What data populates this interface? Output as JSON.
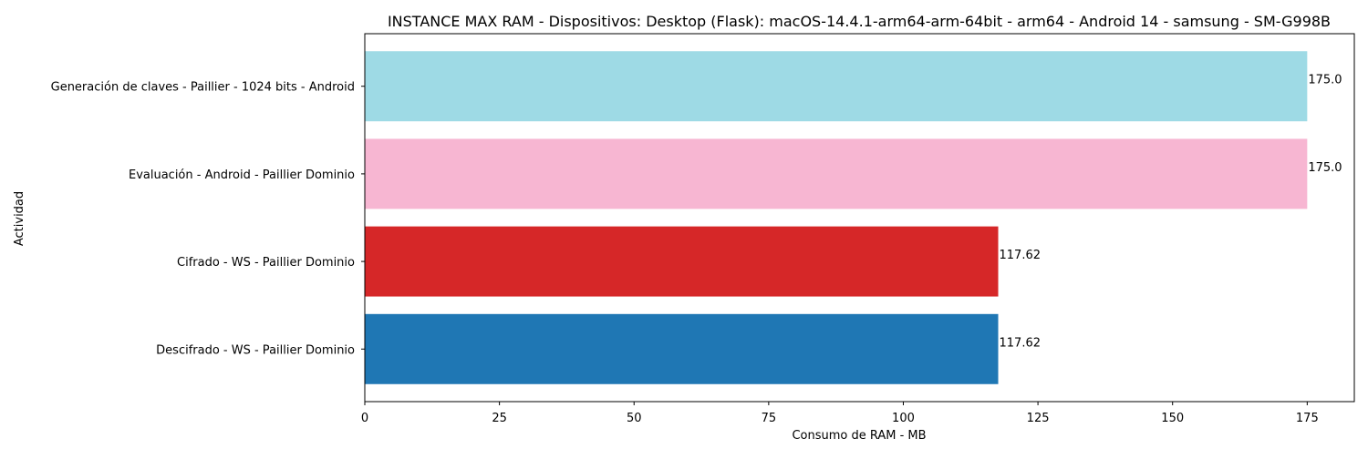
{
  "chart_data": {
    "type": "bar",
    "orientation": "horizontal",
    "title": "INSTANCE MAX RAM - Dispositivos: Desktop (Flask): macOS-14.4.1-arm64-arm-64bit - arm64 - Android 14 - samsung - SM-G998B",
    "xlabel": "Consumo de RAM - MB",
    "ylabel": "Actividad",
    "categories": [
      "Descifrado - WS - Paillier Dominio",
      "Cifrado - WS - Paillier Dominio",
      "Evaluación - Android - Paillier Dominio",
      "Generación de claves - Paillier - 1024 bits - Android"
    ],
    "values": [
      117.62,
      117.62,
      175.0,
      175.0
    ],
    "value_labels": [
      "117.62",
      "117.62",
      "175.0",
      "175.0"
    ],
    "colors": [
      "#1f77b4",
      "#d62728",
      "#f7b6d2",
      "#9edae5"
    ],
    "xlim": [
      0,
      183.75
    ],
    "xticks": [
      0,
      25,
      50,
      75,
      100,
      125,
      150,
      175
    ],
    "xtick_labels": [
      "0",
      "25",
      "50",
      "75",
      "100",
      "125",
      "150",
      "175"
    ],
    "grid": false,
    "legend": "none"
  }
}
